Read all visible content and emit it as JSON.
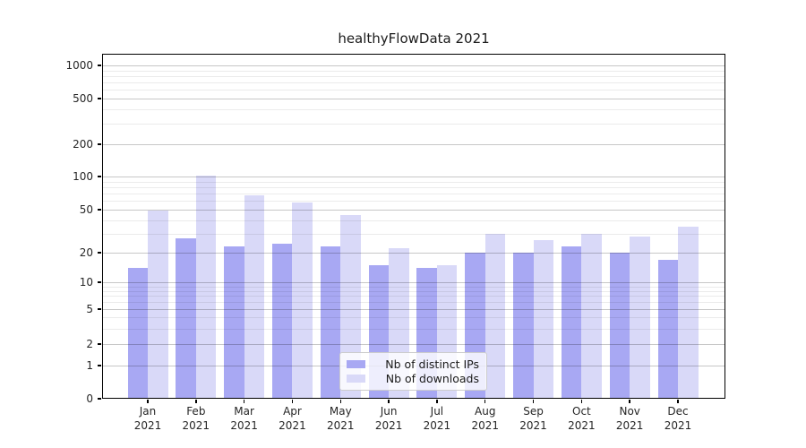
{
  "title": "healthyFlowData 2021",
  "chart_data": {
    "type": "bar",
    "title": "healthyFlowData 2021",
    "year": "2021",
    "months": [
      "Jan",
      "Feb",
      "Mar",
      "Apr",
      "May",
      "Jun",
      "Jul",
      "Aug",
      "Sep",
      "Oct",
      "Nov",
      "Dec"
    ],
    "categories": [
      "Jan 2021",
      "Feb 2021",
      "Mar 2021",
      "Apr 2021",
      "May 2021",
      "Jun 2021",
      "Jul 2021",
      "Aug 2021",
      "Sep 2021",
      "Oct 2021",
      "Nov 2021",
      "Dec 2021"
    ],
    "series": [
      {
        "name": "Nb of distinct IPs",
        "color": "#a8a8f3",
        "values": [
          14,
          27,
          23,
          24,
          23,
          15,
          14,
          20,
          20,
          23,
          20,
          17
        ]
      },
      {
        "name": "Nb of downloads",
        "color": "#d9d9f8",
        "values": [
          49,
          101,
          68,
          58,
          45,
          22,
          15,
          30,
          26,
          30,
          28,
          35
        ]
      }
    ],
    "yscale": "symlog",
    "yticks": [
      0,
      1,
      2,
      5,
      10,
      20,
      50,
      100,
      200,
      500,
      1000
    ],
    "ylim": [
      0,
      1300
    ],
    "grid": "on",
    "legend_position": "lower center",
    "colors": {
      "bar_dark": "#a8a8f3",
      "bar_light": "#d9d9f8",
      "grid_major": "#c7c7c7",
      "grid_minor": "#ebebeb",
      "axis": "#000000",
      "text": "#262626"
    }
  }
}
